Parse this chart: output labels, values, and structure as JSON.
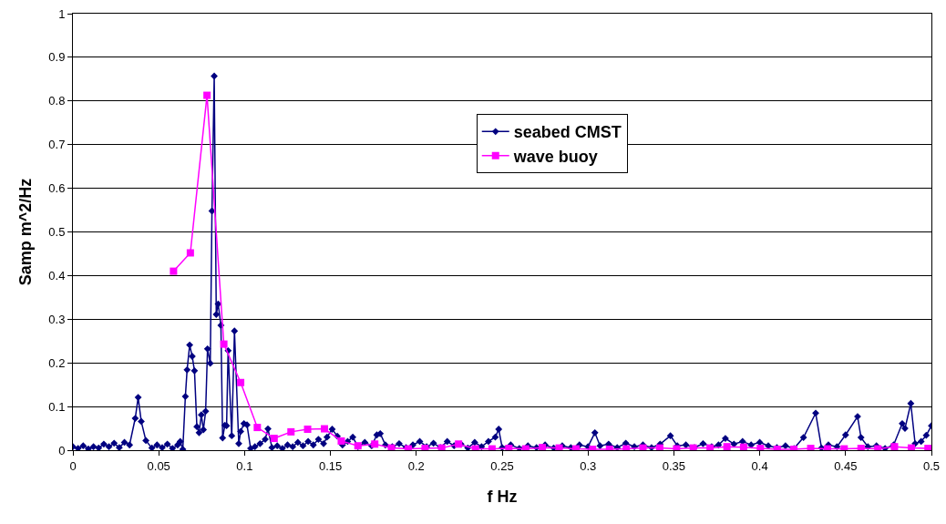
{
  "chart_data": {
    "type": "line",
    "xlabel": "f Hz",
    "ylabel": "Samp m^2/Hz",
    "xlim": [
      0,
      0.5
    ],
    "xticks": [
      0,
      0.05,
      0.1,
      0.15,
      0.2,
      0.25,
      0.3,
      0.35,
      0.4,
      0.45,
      0.5
    ],
    "ylim": [
      0,
      1
    ],
    "yticks": [
      0,
      0.1,
      0.2,
      0.3,
      0.4,
      0.5,
      0.6,
      0.7,
      0.8,
      0.9,
      1
    ],
    "grid": "y",
    "legend": "right",
    "line_style": "solid",
    "series": [
      {
        "name": "seabed CMST",
        "color": "#000080",
        "marker": "diamond",
        "x": [
          0,
          0.003,
          0.006,
          0.009,
          0.012,
          0.015,
          0.018,
          0.021,
          0.024,
          0.027,
          0.03,
          0.033,
          0.0363,
          0.038,
          0.0398,
          0.0425,
          0.046,
          0.049,
          0.052,
          0.055,
          0.058,
          0.061,
          0.0625,
          0.064,
          0.0655,
          0.0665,
          0.068,
          0.0695,
          0.0708,
          0.0722,
          0.0735,
          0.0748,
          0.076,
          0.0773,
          0.0784,
          0.08,
          0.081,
          0.0823,
          0.0835,
          0.0846,
          0.0862,
          0.0872,
          0.0885,
          0.0895,
          0.0904,
          0.0925,
          0.0941,
          0.0966,
          0.0977,
          0.0996,
          0.1014,
          0.1035,
          0.106,
          0.109,
          0.112,
          0.1136,
          0.1159,
          0.119,
          0.122,
          0.125,
          0.128,
          0.131,
          0.134,
          0.137,
          0.14,
          0.143,
          0.146,
          0.148,
          0.151,
          0.154,
          0.157,
          0.16,
          0.163,
          0.166,
          0.17,
          0.174,
          0.177,
          0.179,
          0.182,
          0.186,
          0.19,
          0.194,
          0.198,
          0.202,
          0.206,
          0.21,
          0.214,
          0.218,
          0.222,
          0.226,
          0.23,
          0.234,
          0.238,
          0.242,
          0.246,
          0.248,
          0.25,
          0.255,
          0.26,
          0.265,
          0.27,
          0.275,
          0.28,
          0.285,
          0.29,
          0.295,
          0.3,
          0.304,
          0.307,
          0.312,
          0.317,
          0.322,
          0.327,
          0.332,
          0.337,
          0.342,
          0.348,
          0.352,
          0.357,
          0.362,
          0.367,
          0.372,
          0.376,
          0.38,
          0.385,
          0.39,
          0.395,
          0.4,
          0.405,
          0.41,
          0.415,
          0.42,
          0.4255,
          0.4326,
          0.436,
          0.44,
          0.445,
          0.45,
          0.457,
          0.459,
          0.463,
          0.468,
          0.473,
          0.478,
          0.483,
          0.4846,
          0.488,
          0.4905,
          0.494,
          0.497,
          0.5
        ],
        "values": [
          0.008,
          0.004,
          0.01,
          0.003,
          0.008,
          0.005,
          0.014,
          0.008,
          0.016,
          0.006,
          0.018,
          0.012,
          0.073,
          0.121,
          0.066,
          0.022,
          0.005,
          0.012,
          0.006,
          0.014,
          0.004,
          0.012,
          0.02,
          0.002,
          0.123,
          0.184,
          0.241,
          0.215,
          0.182,
          0.054,
          0.04,
          0.081,
          0.047,
          0.089,
          0.232,
          0.199,
          0.548,
          0.857,
          0.311,
          0.335,
          0.286,
          0.028,
          0.057,
          0.056,
          0.228,
          0.033,
          0.273,
          0.015,
          0.043,
          0.061,
          0.058,
          0.004,
          0.008,
          0.015,
          0.025,
          0.049,
          0.006,
          0.01,
          0.004,
          0.012,
          0.008,
          0.018,
          0.01,
          0.02,
          0.012,
          0.025,
          0.015,
          0.03,
          0.048,
          0.032,
          0.012,
          0.02,
          0.03,
          0.008,
          0.018,
          0.01,
          0.035,
          0.038,
          0.012,
          0.008,
          0.015,
          0.006,
          0.012,
          0.02,
          0.008,
          0.016,
          0.006,
          0.02,
          0.01,
          0.014,
          0.005,
          0.018,
          0.008,
          0.02,
          0.03,
          0.048,
          0.006,
          0.012,
          0.004,
          0.01,
          0.006,
          0.012,
          0.005,
          0.01,
          0.006,
          0.012,
          0.008,
          0.04,
          0.01,
          0.014,
          0.006,
          0.016,
          0.008,
          0.012,
          0.006,
          0.014,
          0.033,
          0.01,
          0.012,
          0.006,
          0.015,
          0.008,
          0.012,
          0.027,
          0.014,
          0.02,
          0.012,
          0.018,
          0.01,
          0.006,
          0.01,
          0.004,
          0.029,
          0.085,
          0.005,
          0.012,
          0.008,
          0.035,
          0.077,
          0.029,
          0.008,
          0.01,
          0.004,
          0.012,
          0.061,
          0.05,
          0.107,
          0.015,
          0.02,
          0.034,
          0.056
        ]
      },
      {
        "name": "wave buoy",
        "color": "#ff00ff",
        "marker": "square",
        "x": [
          0.0586,
          0.0684,
          0.0781,
          0.0879,
          0.0977,
          0.1074,
          0.1172,
          0.127,
          0.1367,
          0.1465,
          0.1563,
          0.166,
          0.1758,
          0.1855,
          0.1953,
          0.2051,
          0.2148,
          0.2246,
          0.2344,
          0.2441,
          0.2539,
          0.2637,
          0.2734,
          0.2832,
          0.293,
          0.3027,
          0.3125,
          0.3223,
          0.332,
          0.3418,
          0.3516,
          0.3613,
          0.3711,
          0.3809,
          0.3906,
          0.4004,
          0.4102,
          0.4199,
          0.4297,
          0.4395,
          0.4492,
          0.459,
          0.4688,
          0.4785,
          0.4883,
          0.498
        ],
        "values": [
          0.41,
          0.452,
          0.813,
          0.243,
          0.155,
          0.052,
          0.027,
          0.042,
          0.048,
          0.049,
          0.021,
          0.01,
          0.014,
          0.005,
          0.003,
          0.004,
          0.005,
          0.014,
          0.003,
          0.003,
          0.004,
          0.003,
          0.006,
          0.005,
          0.003,
          0.002,
          0.002,
          0.003,
          0.005,
          0.005,
          0.003,
          0.005,
          0.005,
          0.008,
          0.007,
          0.004,
          0.002,
          0.002,
          0.004,
          0.003,
          0.003,
          0.004,
          0.003,
          0.008,
          0.005,
          0.004
        ]
      }
    ]
  }
}
